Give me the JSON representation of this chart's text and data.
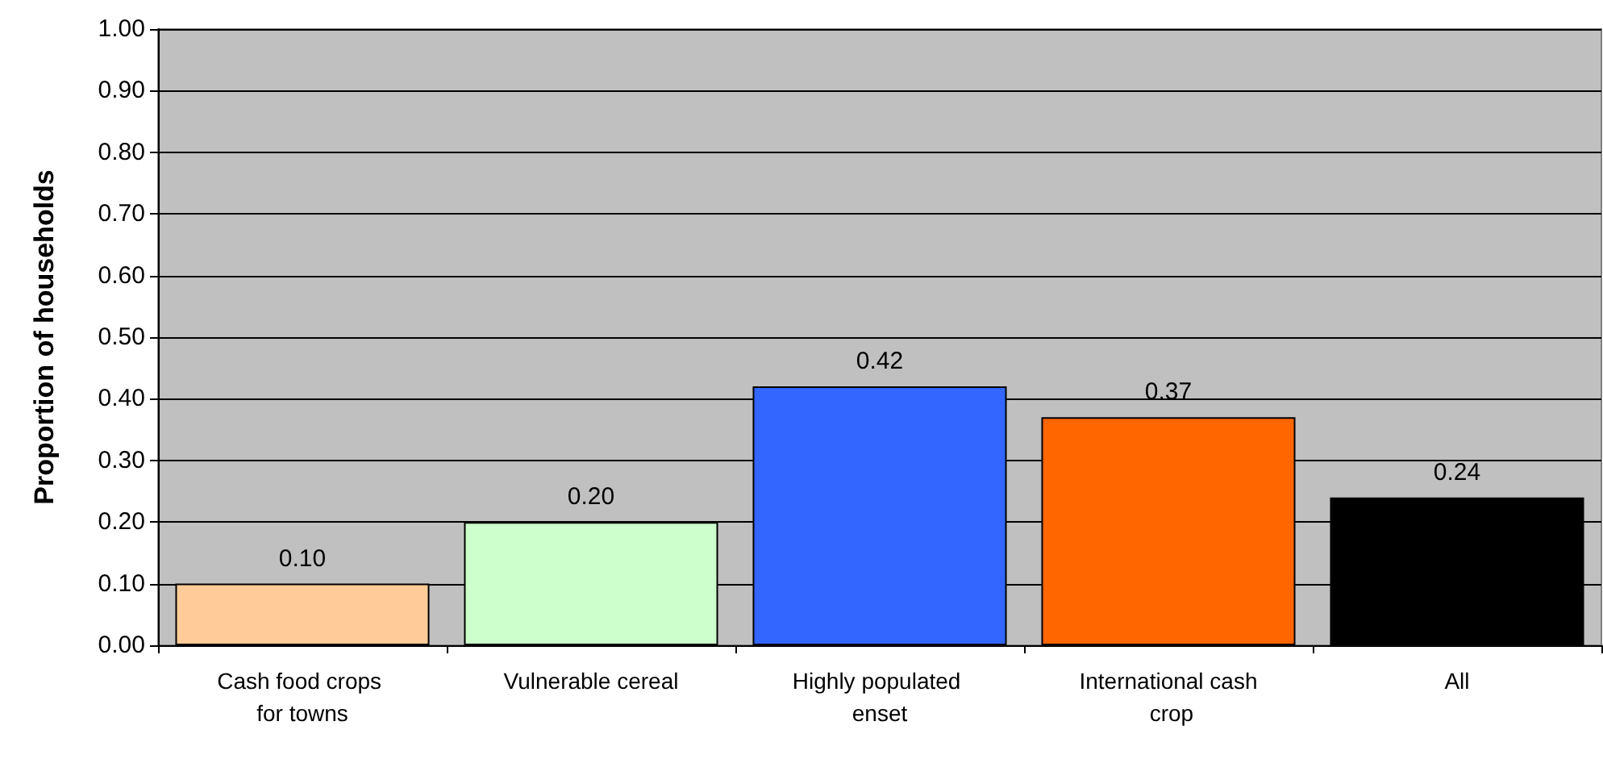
{
  "chart_data": {
    "type": "bar",
    "ylabel": "Proportion of households",
    "categories": [
      "Cash food crops for towns",
      "Vulnerable cereal",
      "Highly populated enset",
      "International cash crop",
      "All"
    ],
    "values": [
      0.1,
      0.2,
      0.42,
      0.37,
      0.24
    ],
    "colors": [
      "#ffcc99",
      "#ccffcc",
      "#3366ff",
      "#ff6600",
      "#000000"
    ],
    "value_labels": [
      "0.10",
      "0.20",
      "0.42",
      "0.37",
      "0.24"
    ],
    "ylim": [
      0,
      1
    ],
    "yticks": [
      {
        "value": 0,
        "label": "0.00"
      },
      {
        "value": 0.1,
        "label": "0.10"
      },
      {
        "value": 0.2,
        "label": "0.20"
      },
      {
        "value": 0.3,
        "label": "0.30"
      },
      {
        "value": 0.4,
        "label": "0.40"
      },
      {
        "value": 0.5,
        "label": "0.50"
      },
      {
        "value": 0.6,
        "label": "0.60"
      },
      {
        "value": 0.7,
        "label": "0.70"
      },
      {
        "value": 0.8,
        "label": "0.80"
      },
      {
        "value": 0.9,
        "label": "0.90"
      },
      {
        "value": 1,
        "label": "1.00"
      }
    ],
    "grid": "y"
  }
}
